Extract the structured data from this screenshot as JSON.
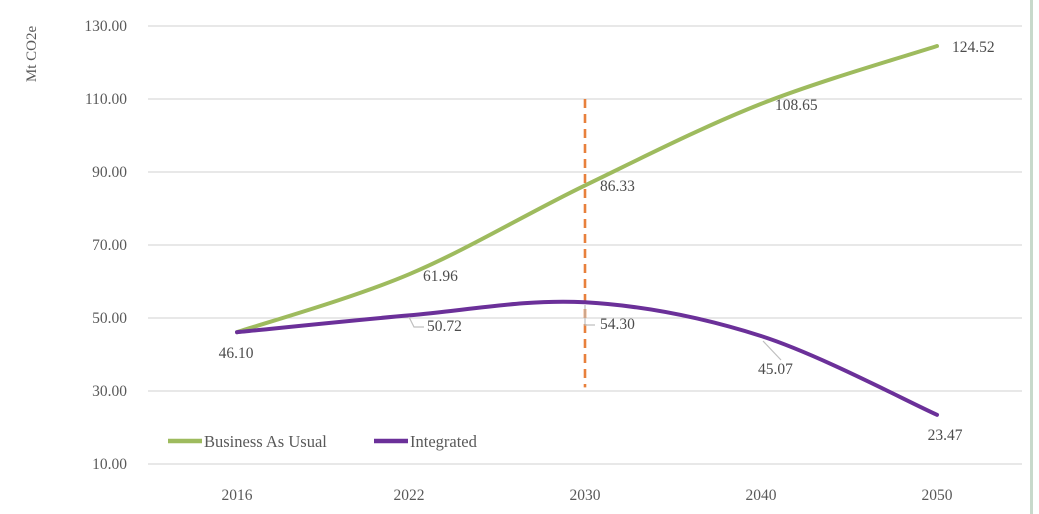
{
  "page": {
    "background": "#FFFFFF",
    "right_edge_color": "#C8D9CB"
  },
  "chart_data": {
    "type": "line",
    "title": "",
    "xlabel": "",
    "ylabel": "Mt CO2e",
    "categories": [
      "2016",
      "2022",
      "2030",
      "2040",
      "2050"
    ],
    "series": [
      {
        "name": "Business As Usual",
        "color": "#9EBB5E",
        "values": [
          46.1,
          61.96,
          86.33,
          108.65,
          124.52
        ],
        "labels": [
          "46.10",
          "61.96",
          "86.33",
          "108.65",
          "124.52"
        ]
      },
      {
        "name": "Integrated",
        "color": "#6B3099",
        "values": [
          46.1,
          50.72,
          54.3,
          45.07,
          23.47
        ],
        "labels": [
          null,
          "50.72",
          "54.30",
          "45.07",
          "23.47"
        ]
      }
    ],
    "y_ticks": [
      130,
      110,
      90,
      70,
      50,
      30,
      10
    ],
    "y_tick_labels": [
      "130.00",
      "110.00",
      "90.00",
      "70.00",
      "50.00",
      "30.00",
      "10.00"
    ],
    "ylim": [
      10,
      130
    ],
    "grid": true,
    "grid_color": "#D9D9D9",
    "axis_text_color": "#595959",
    "label_text_color": "#4C4C4C",
    "leader_line_color": "#BFBFBF",
    "smooth_lines": true,
    "reference_line": {
      "category": "2030",
      "color": "#E8803C",
      "style": "dashed",
      "span_values": [
        31,
        110
      ]
    },
    "legend": {
      "position": "bottom-left-inside",
      "entries": [
        "Business As Usual",
        "Integrated"
      ]
    }
  }
}
